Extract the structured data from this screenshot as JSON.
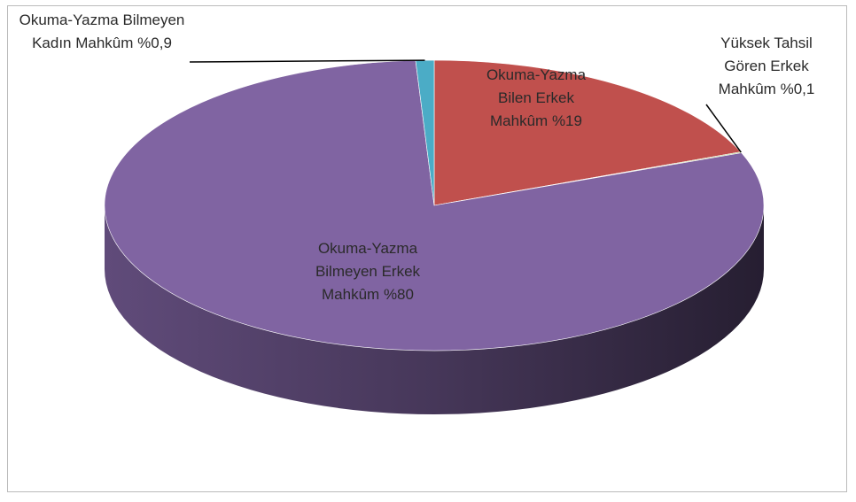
{
  "chart_data": {
    "type": "pie3d",
    "categories": [
      "Okuma-Yazma Bilen Erkek Mahkûm",
      "Yüksek Tahsil Gören Erkek Mahkûm",
      "Okuma-Yazma Bilmeyen Erkek Mahkûm",
      "Okuma-Yazma Bilmeyen Kadın Mahkûm"
    ],
    "values": [
      19,
      0.1,
      80,
      0.9
    ],
    "value_labels": [
      "%19",
      "%0,1",
      "%80",
      "%0,9"
    ],
    "colors": [
      "#c0504d",
      "#9bbb59",
      "#8064a2",
      "#4bacc6"
    ]
  }
}
